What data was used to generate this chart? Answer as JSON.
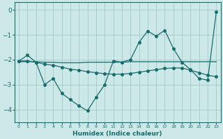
{
  "xlabel": "Humidex (Indice chaleur)",
  "background_color": "#cce8e8",
  "grid_color": "#aacccc",
  "line_color": "#1a6b6b",
  "xlim": [
    -0.5,
    23.5
  ],
  "ylim": [
    -4.5,
    0.3
  ],
  "yticks": [
    0,
    -1,
    -2,
    -3,
    -4
  ],
  "xticks": [
    0,
    1,
    2,
    3,
    4,
    5,
    6,
    7,
    8,
    9,
    10,
    11,
    12,
    13,
    14,
    15,
    16,
    17,
    18,
    19,
    20,
    21,
    22,
    23
  ],
  "s1_x": [
    0,
    1,
    2,
    3,
    4,
    5,
    6,
    7,
    8,
    9,
    10,
    11,
    12,
    13,
    14,
    15,
    16,
    17,
    18,
    19,
    20,
    21,
    22,
    23
  ],
  "s1_y": [
    -2.05,
    -1.82,
    -2.1,
    -3.0,
    -2.75,
    -3.35,
    -3.6,
    -3.85,
    -4.05,
    -3.5,
    -3.0,
    -2.05,
    -2.1,
    -2.0,
    -1.3,
    -0.85,
    -1.05,
    -0.82,
    -1.55,
    -2.1,
    -2.4,
    -2.75,
    -2.82,
    -0.08
  ],
  "s2_x": [
    0,
    1,
    2,
    3,
    4,
    5,
    6,
    7,
    8,
    9,
    10,
    11,
    12,
    13,
    14,
    15,
    16,
    17,
    18,
    19,
    20,
    21,
    22,
    23
  ],
  "s2_y": [
    -2.08,
    -2.08,
    -2.08,
    -2.1,
    -2.1,
    -2.12,
    -2.12,
    -2.12,
    -2.1,
    -2.1,
    -2.1,
    -2.1,
    -2.1,
    -2.08,
    -2.08,
    -2.08,
    -2.08,
    -2.08,
    -2.08,
    -2.08,
    -2.08,
    -2.08,
    -2.08,
    -2.08
  ],
  "s3_x": [
    0,
    1,
    2,
    3,
    4,
    5,
    6,
    7,
    8,
    9,
    10,
    11,
    12,
    13,
    14,
    15,
    16,
    17,
    18,
    19,
    20,
    21,
    22,
    23
  ],
  "s3_y": [
    -2.05,
    -2.05,
    -2.1,
    -2.18,
    -2.22,
    -2.3,
    -2.38,
    -2.42,
    -2.48,
    -2.52,
    -2.56,
    -2.58,
    -2.58,
    -2.55,
    -2.5,
    -2.45,
    -2.4,
    -2.35,
    -2.33,
    -2.33,
    -2.42,
    -2.52,
    -2.62,
    -2.68
  ]
}
